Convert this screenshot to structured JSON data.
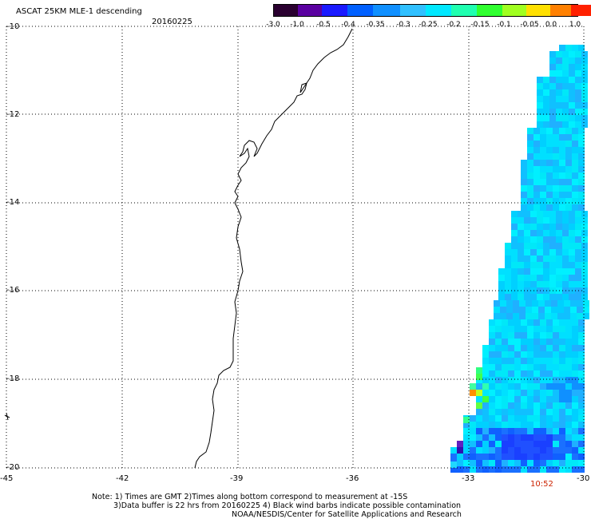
{
  "header": {
    "title": "ASCAT 25KM MLE-1 descending",
    "date": "20160225"
  },
  "colorbar": {
    "labels": [
      "-3.0",
      "-1.0",
      "-0.5",
      "-0.4",
      "-0.35",
      "-0.3",
      "-0.25",
      "-0.2",
      "-0.15",
      "-0.1",
      "-0.05",
      "0.0",
      "1.0"
    ],
    "colors": [
      "#2a0030",
      "#5a00a0",
      "#1a1aff",
      "#0060ff",
      "#1090ff",
      "#30c0ff",
      "#00e8ff",
      "#20ffb0",
      "#30ff30",
      "#a0ff20",
      "#ffe000",
      "#ff8000",
      "#ff2000"
    ]
  },
  "axes": {
    "lon_labels": [
      "-45",
      "-42",
      "-39",
      "-36",
      "-33",
      "-30"
    ],
    "lat_labels": [
      "-10",
      "-12",
      "-14",
      "-16",
      "-18",
      "-20"
    ],
    "lon_range": [
      -45,
      -30
    ],
    "lat_range": [
      -20,
      -10
    ]
  },
  "time_label": "10:52",
  "notes": {
    "line1": "Note: 1) Times are GMT 2)Times along bottom correspond to measurement at -15S",
    "line2": "3)Data buffer is 22 hrs from 20160225 4) Black wind barbs indicate possible contamination",
    "credit": "NOAA/NESDIS/Center for Satellite Applications and Research"
  },
  "colors": {
    "time_label": "#cc2200",
    "coastline": "#000000"
  }
}
